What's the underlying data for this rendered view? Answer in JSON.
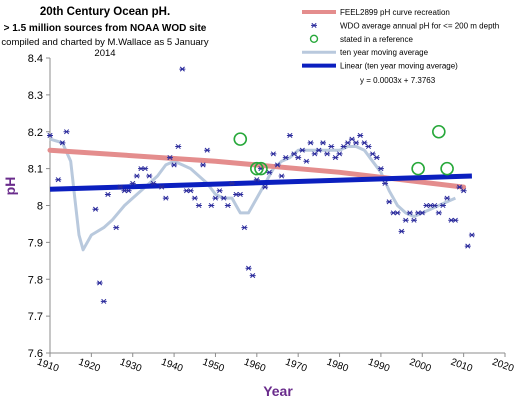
{
  "chart_data": {
    "type": "scatter",
    "title": "20th Century Ocean pH.",
    "subtitle": "> 1.5 million sources from NOAA WOD site",
    "credit": "compiled and charted by M.Wallace as 5 January 2014",
    "xlabel": "Year",
    "ylabel": "pH",
    "xlim": [
      1910,
      2020
    ],
    "ylim": [
      7.6,
      8.4
    ],
    "xticks": [
      "1910",
      "1920",
      "1930",
      "1940",
      "1950",
      "1960",
      "1970",
      "1980",
      "1990",
      "2000",
      "2010",
      "2020"
    ],
    "yticks": [
      "7.6",
      "7.7",
      "7.8",
      "7.9",
      "8",
      "8.1",
      "8.2",
      "8.3",
      "8.4"
    ],
    "grid": false,
    "legend_position": "top-right",
    "series": [
      {
        "name": "FEEL2899 pH curve recreation",
        "kind": "line",
        "color": "#e48d8d",
        "points": [
          [
            1910,
            8.15
          ],
          [
            1950,
            8.12
          ],
          [
            1980,
            8.09
          ],
          [
            2010,
            8.05
          ]
        ]
      },
      {
        "name": "WDO average annual pH for <= 200 m depth",
        "kind": "scatter",
        "color": "#2b2b9c",
        "points": [
          [
            1910,
            8.19
          ],
          [
            1912,
            8.07
          ],
          [
            1913,
            8.17
          ],
          [
            1914,
            8.2
          ],
          [
            1921,
            7.99
          ],
          [
            1922,
            7.79
          ],
          [
            1923,
            7.74
          ],
          [
            1924,
            8.03
          ],
          [
            1926,
            7.94
          ],
          [
            1927,
            8.05
          ],
          [
            1928,
            8.04
          ],
          [
            1929,
            8.04
          ],
          [
            1930,
            8.06
          ],
          [
            1931,
            8.08
          ],
          [
            1932,
            8.1
          ],
          [
            1933,
            8.1
          ],
          [
            1934,
            8.08
          ],
          [
            1935,
            8.06
          ],
          [
            1937,
            8.05
          ],
          [
            1938,
            8.02
          ],
          [
            1939,
            8.13
          ],
          [
            1940,
            8.11
          ],
          [
            1941,
            8.16
          ],
          [
            1942,
            8.37
          ],
          [
            1943,
            8.04
          ],
          [
            1944,
            8.04
          ],
          [
            1945,
            8.02
          ],
          [
            1946,
            8.0
          ],
          [
            1947,
            8.11
          ],
          [
            1948,
            8.15
          ],
          [
            1949,
            8.0
          ],
          [
            1950,
            8.02
          ],
          [
            1951,
            8.04
          ],
          [
            1952,
            8.02
          ],
          [
            1953,
            8.0
          ],
          [
            1954,
            8.06
          ],
          [
            1955,
            8.03
          ],
          [
            1956,
            8.03
          ],
          [
            1957,
            7.94
          ],
          [
            1958,
            7.83
          ],
          [
            1959,
            7.81
          ],
          [
            1960,
            8.07
          ],
          [
            1961,
            8.1
          ],
          [
            1962,
            8.05
          ],
          [
            1963,
            8.09
          ],
          [
            1964,
            8.14
          ],
          [
            1965,
            8.11
          ],
          [
            1966,
            8.08
          ],
          [
            1967,
            8.13
          ],
          [
            1968,
            8.19
          ],
          [
            1969,
            8.14
          ],
          [
            1970,
            8.13
          ],
          [
            1971,
            8.15
          ],
          [
            1972,
            8.12
          ],
          [
            1973,
            8.17
          ],
          [
            1974,
            8.14
          ],
          [
            1975,
            8.15
          ],
          [
            1976,
            8.17
          ],
          [
            1977,
            8.14
          ],
          [
            1978,
            8.16
          ],
          [
            1979,
            8.13
          ],
          [
            1980,
            8.14
          ],
          [
            1981,
            8.16
          ],
          [
            1982,
            8.17
          ],
          [
            1983,
            8.18
          ],
          [
            1984,
            8.17
          ],
          [
            1985,
            8.19
          ],
          [
            1986,
            8.17
          ],
          [
            1987,
            8.16
          ],
          [
            1988,
            8.14
          ],
          [
            1989,
            8.13
          ],
          [
            1990,
            8.1
          ],
          [
            1991,
            8.06
          ],
          [
            1992,
            8.01
          ],
          [
            1993,
            7.98
          ],
          [
            1994,
            7.98
          ],
          [
            1995,
            7.93
          ],
          [
            1996,
            7.96
          ],
          [
            1997,
            7.98
          ],
          [
            1998,
            7.96
          ],
          [
            1999,
            7.98
          ],
          [
            2000,
            7.98
          ],
          [
            2001,
            8.0
          ],
          [
            2002,
            8.0
          ],
          [
            2003,
            8.0
          ],
          [
            2004,
            7.98
          ],
          [
            2005,
            8.0
          ],
          [
            2006,
            8.02
          ],
          [
            2007,
            7.96
          ],
          [
            2008,
            7.96
          ],
          [
            2009,
            8.05
          ],
          [
            2010,
            8.04
          ],
          [
            2011,
            7.89
          ],
          [
            2012,
            7.92
          ]
        ]
      },
      {
        "name": "stated in a reference",
        "kind": "circle",
        "color": "#27a83a",
        "points": [
          [
            1956,
            8.18
          ],
          [
            1960,
            8.1
          ],
          [
            1961,
            8.1
          ],
          [
            1999,
            8.1
          ],
          [
            2004,
            8.2
          ],
          [
            2006,
            8.1
          ]
        ]
      },
      {
        "name": "ten year moving average",
        "kind": "line",
        "color": "#b9c9dd",
        "points": [
          [
            1910,
            8.18
          ],
          [
            1913,
            8.17
          ],
          [
            1915,
            8.12
          ],
          [
            1916,
            8.02
          ],
          [
            1917,
            7.92
          ],
          [
            1918,
            7.88
          ],
          [
            1920,
            7.92
          ],
          [
            1923,
            7.94
          ],
          [
            1925,
            7.96
          ],
          [
            1928,
            8.0
          ],
          [
            1930,
            8.02
          ],
          [
            1932,
            8.04
          ],
          [
            1934,
            8.06
          ],
          [
            1936,
            8.08
          ],
          [
            1938,
            8.11
          ],
          [
            1940,
            8.12
          ],
          [
            1942,
            8.11
          ],
          [
            1944,
            8.1
          ],
          [
            1946,
            8.08
          ],
          [
            1948,
            8.06
          ],
          [
            1950,
            8.03
          ],
          [
            1952,
            8.02
          ],
          [
            1954,
            8.02
          ],
          [
            1955,
            8.0
          ],
          [
            1956,
            7.98
          ],
          [
            1958,
            7.98
          ],
          [
            1960,
            8.02
          ],
          [
            1962,
            8.06
          ],
          [
            1964,
            8.1
          ],
          [
            1966,
            8.12
          ],
          [
            1968,
            8.13
          ],
          [
            1970,
            8.15
          ],
          [
            1972,
            8.15
          ],
          [
            1974,
            8.15
          ],
          [
            1976,
            8.15
          ],
          [
            1978,
            8.15
          ],
          [
            1980,
            8.15
          ],
          [
            1982,
            8.16
          ],
          [
            1984,
            8.16
          ],
          [
            1986,
            8.15
          ],
          [
            1988,
            8.12
          ],
          [
            1990,
            8.09
          ],
          [
            1992,
            8.04
          ],
          [
            1994,
            8.0
          ],
          [
            1996,
            7.98
          ],
          [
            1998,
            7.97
          ],
          [
            2000,
            7.98
          ],
          [
            2002,
            7.99
          ],
          [
            2004,
            8.0
          ],
          [
            2006,
            8.01
          ],
          [
            2008,
            8.02
          ]
        ]
      },
      {
        "name": "Linear (ten year moving average)",
        "kind": "line",
        "color": "#0b1fbf",
        "points": [
          [
            1910,
            8.044
          ],
          [
            2012,
            8.08
          ]
        ]
      }
    ],
    "annotation": "y = 0.0003x + 7.3763"
  }
}
